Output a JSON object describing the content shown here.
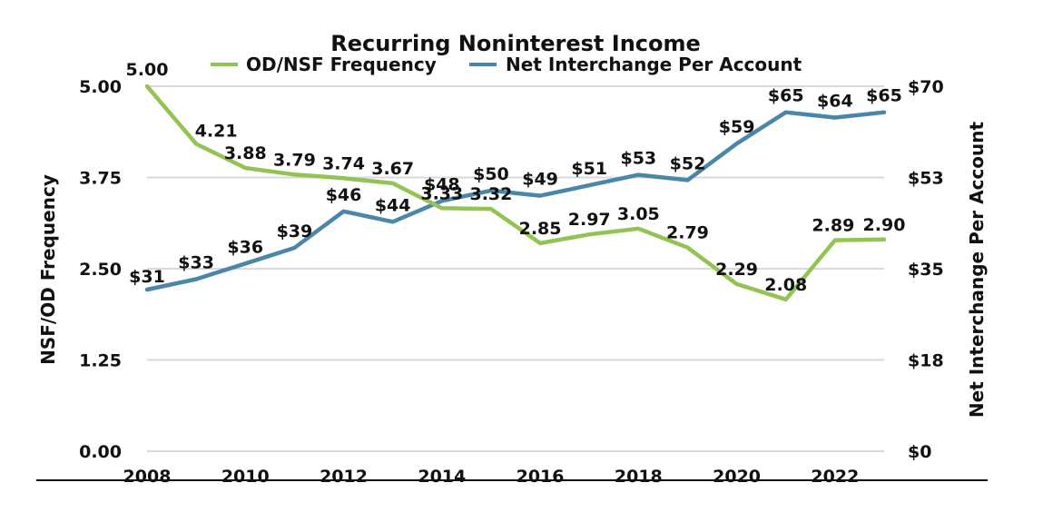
{
  "chart_data": {
    "type": "line",
    "title": "Recurring Noninterest Income",
    "x": [
      2008,
      2009,
      2010,
      2011,
      2012,
      2013,
      2014,
      2015,
      2016,
      2017,
      2018,
      2019,
      2020,
      2021,
      2022,
      2023
    ],
    "x_ticks": [
      "2008",
      "2010",
      "2012",
      "2014",
      "2016",
      "2018",
      "2020",
      "2022"
    ],
    "xlim": [
      2008,
      2023
    ],
    "left_axis": {
      "label": "NSF/OD Frequency",
      "ylim": [
        0,
        5
      ],
      "ticks": [
        0,
        1.25,
        2.5,
        3.75,
        5
      ],
      "tick_labels": [
        "0.00",
        "1.25",
        "2.50",
        "3.75",
        "5.00"
      ]
    },
    "right_axis": {
      "label": "Net Interchange Per Account",
      "ylim": [
        0,
        70
      ],
      "ticks": [
        0,
        17.5,
        35,
        52.5,
        70
      ],
      "tick_labels": [
        "$0",
        "$18",
        "$35",
        "$53",
        "$70"
      ]
    },
    "series": [
      {
        "name": "OD/NSF Frequency",
        "axis": "left",
        "color": "#92c353",
        "values": [
          5.0,
          4.21,
          3.88,
          3.79,
          3.74,
          3.67,
          3.33,
          3.32,
          2.85,
          2.97,
          3.05,
          2.79,
          2.29,
          2.08,
          2.89,
          2.9
        ],
        "labels": [
          "5.00",
          "4.21",
          "3.88",
          "3.79",
          "3.74",
          "3.67",
          "3.33",
          "3.32",
          "2.85",
          "2.97",
          "3.05",
          "2.79",
          "2.29",
          "2.08",
          "2.89",
          "2.90"
        ]
      },
      {
        "name": "Net Interchange Per Account",
        "axis": "right",
        "color": "#4a86a8",
        "values": [
          31,
          33,
          36,
          39,
          46,
          44,
          48,
          50,
          49,
          51,
          53,
          52,
          59,
          65,
          64,
          65
        ],
        "labels": [
          "$31",
          "$33",
          "$36",
          "$39",
          "$46",
          "$44",
          "$48",
          "$50",
          "$49",
          "$51",
          "$53",
          "$52",
          "$59",
          "$65",
          "$64",
          "$65"
        ]
      }
    ],
    "grid": true,
    "legend": "top"
  }
}
